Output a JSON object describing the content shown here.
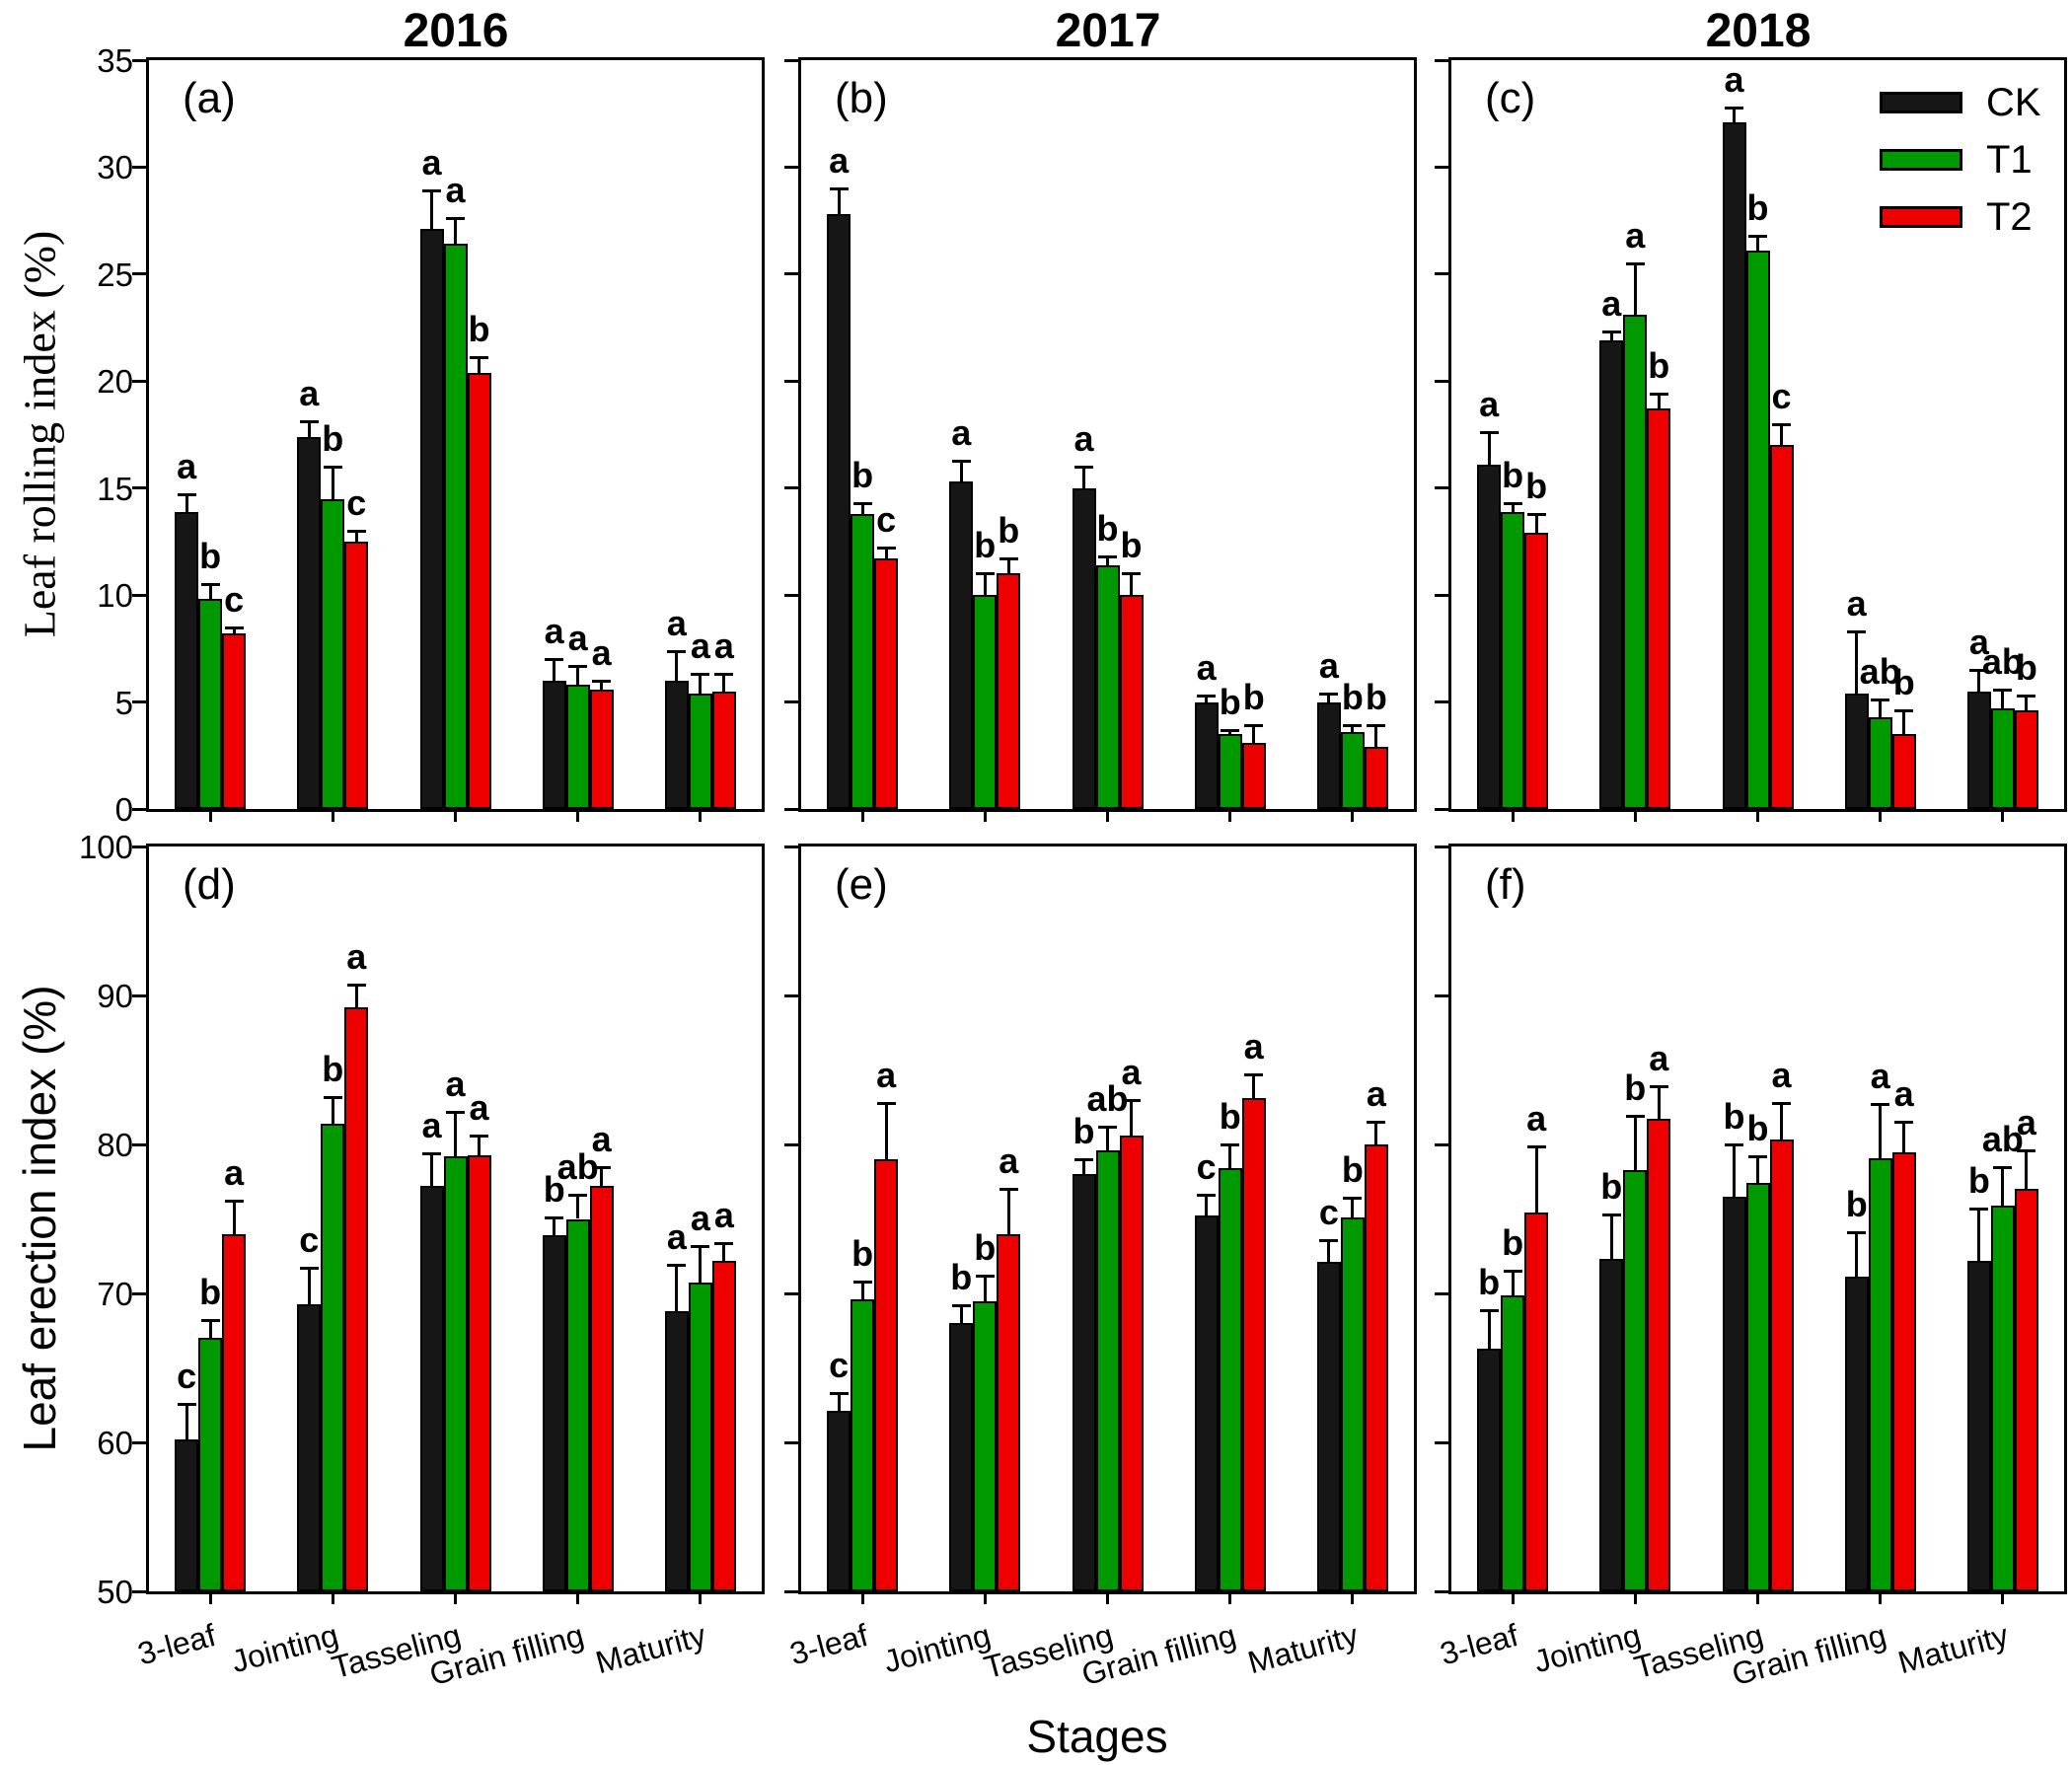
{
  "figure": {
    "xlabel": "Stages"
  },
  "legend": {
    "items": [
      {
        "label": "CK",
        "color": "#161616"
      },
      {
        "label": "T1",
        "color": "#009900"
      },
      {
        "label": "T2",
        "color": "#EE0000"
      }
    ]
  },
  "chart_data": [
    {
      "panel_label": "(a)",
      "year": "2016",
      "type": "bar",
      "ylabel": "Leaf rolling index (%)",
      "ylim": [
        0,
        35
      ],
      "yticks": [
        0,
        5,
        10,
        15,
        20,
        25,
        30,
        35
      ],
      "categories": [
        "3-leaf",
        "Jointing",
        "Tasseling",
        "Grain filling",
        "Maturity"
      ],
      "series": [
        {
          "name": "CK",
          "values": [
            13.9,
            17.4,
            27.1,
            6.0,
            6.0
          ],
          "errors": [
            0.8,
            0.7,
            1.8,
            1.0,
            1.4
          ],
          "letters": [
            "a",
            "a",
            "a",
            "a",
            "a"
          ]
        },
        {
          "name": "T1",
          "values": [
            9.8,
            14.5,
            26.4,
            5.8,
            5.4
          ],
          "errors": [
            0.7,
            1.5,
            1.2,
            0.9,
            0.9
          ],
          "letters": [
            "b",
            "b",
            "a",
            "a",
            "a"
          ]
        },
        {
          "name": "T2",
          "values": [
            8.2,
            12.5,
            20.4,
            5.6,
            5.5
          ],
          "errors": [
            0.3,
            0.5,
            0.7,
            0.4,
            0.8
          ],
          "letters": [
            "c",
            "c",
            "b",
            "a",
            "a"
          ]
        }
      ]
    },
    {
      "panel_label": "(b)",
      "year": "2017",
      "type": "bar",
      "ylabel": "Leaf rolling index (%)",
      "ylim": [
        0,
        35
      ],
      "yticks": [
        0,
        5,
        10,
        15,
        20,
        25,
        30,
        35
      ],
      "categories": [
        "3-leaf",
        "Jointing",
        "Tasseling",
        "Grain filling",
        "Maturity"
      ],
      "series": [
        {
          "name": "CK",
          "values": [
            27.8,
            15.3,
            15.0,
            5.0,
            5.0
          ],
          "errors": [
            1.2,
            1.0,
            1.0,
            0.3,
            0.4
          ],
          "letters": [
            "a",
            "a",
            "a",
            "a",
            "a"
          ]
        },
        {
          "name": "T1",
          "values": [
            13.8,
            10.0,
            11.4,
            3.5,
            3.6
          ],
          "errors": [
            0.5,
            1.0,
            0.4,
            0.2,
            0.3
          ],
          "letters": [
            "b",
            "b",
            "b",
            "b",
            "b"
          ]
        },
        {
          "name": "T2",
          "values": [
            11.7,
            11.0,
            10.0,
            3.1,
            2.9
          ],
          "errors": [
            0.5,
            0.7,
            1.0,
            0.8,
            1.0
          ],
          "letters": [
            "c",
            "b",
            "b",
            "b",
            "b"
          ]
        }
      ]
    },
    {
      "panel_label": "(c)",
      "year": "2018",
      "type": "bar",
      "ylabel": "Leaf rolling index (%)",
      "ylim": [
        0,
        35
      ],
      "yticks": [
        0,
        5,
        10,
        15,
        20,
        25,
        30,
        35
      ],
      "categories": [
        "3-leaf",
        "Jointing",
        "Tasseling",
        "Grain filling",
        "Maturity"
      ],
      "series": [
        {
          "name": "CK",
          "values": [
            16.1,
            21.9,
            32.1,
            5.4,
            5.5
          ],
          "errors": [
            1.5,
            0.4,
            0.7,
            2.9,
            1.0
          ],
          "letters": [
            "a",
            "a",
            "a",
            "a",
            "a"
          ]
        },
        {
          "name": "T1",
          "values": [
            13.9,
            23.1,
            26.1,
            4.3,
            4.7
          ],
          "errors": [
            0.4,
            2.4,
            0.7,
            0.8,
            0.9
          ],
          "letters": [
            "b",
            "a",
            "b",
            "ab",
            "ab"
          ]
        },
        {
          "name": "T2",
          "values": [
            12.9,
            18.7,
            17.0,
            3.5,
            4.6
          ],
          "errors": [
            0.9,
            0.7,
            1.0,
            1.1,
            0.7
          ],
          "letters": [
            "b",
            "b",
            "c",
            "b",
            "b"
          ]
        }
      ]
    },
    {
      "panel_label": "(d)",
      "year": "2016",
      "type": "bar",
      "ylabel": "Leaf erection index (%)",
      "ylim": [
        50,
        100
      ],
      "yticks": [
        50,
        60,
        70,
        80,
        90,
        100
      ],
      "categories": [
        "3-leaf",
        "Jointing",
        "Tasseling",
        "Grain filling",
        "Maturity"
      ],
      "series": [
        {
          "name": "CK",
          "values": [
            60.2,
            69.3,
            77.2,
            73.9,
            68.8
          ],
          "errors": [
            2.4,
            2.4,
            2.2,
            1.2,
            3.1
          ],
          "letters": [
            "c",
            "c",
            "a",
            "b",
            "a"
          ]
        },
        {
          "name": "T1",
          "values": [
            67.0,
            81.4,
            79.2,
            75.0,
            70.7
          ],
          "errors": [
            1.2,
            1.8,
            3.0,
            1.6,
            2.5
          ],
          "letters": [
            "b",
            "b",
            "a",
            "ab",
            "a"
          ]
        },
        {
          "name": "T2",
          "values": [
            74.0,
            89.2,
            79.3,
            77.2,
            72.2
          ],
          "errors": [
            2.2,
            1.5,
            1.3,
            1.3,
            1.2
          ],
          "letters": [
            "a",
            "a",
            "a",
            "a",
            "a"
          ]
        }
      ]
    },
    {
      "panel_label": "(e)",
      "year": "2017",
      "type": "bar",
      "ylabel": "Leaf erection index (%)",
      "ylim": [
        50,
        100
      ],
      "yticks": [
        50,
        60,
        70,
        80,
        90,
        100
      ],
      "categories": [
        "3-leaf",
        "Jointing",
        "Tasseling",
        "Grain filling",
        "Maturity"
      ],
      "series": [
        {
          "name": "CK",
          "values": [
            62.1,
            68.0,
            78.0,
            75.2,
            72.1
          ],
          "errors": [
            1.2,
            1.2,
            1.0,
            1.4,
            1.5
          ],
          "letters": [
            "c",
            "b",
            "b",
            "c",
            "c"
          ]
        },
        {
          "name": "T1",
          "values": [
            69.6,
            69.5,
            79.6,
            78.4,
            75.1
          ],
          "errors": [
            1.2,
            1.7,
            1.6,
            1.6,
            1.3
          ],
          "letters": [
            "b",
            "b",
            "ab",
            "b",
            "b"
          ]
        },
        {
          "name": "T2",
          "values": [
            79.0,
            74.0,
            80.6,
            83.1,
            80.0
          ],
          "errors": [
            3.8,
            3.0,
            2.4,
            1.6,
            1.5
          ],
          "letters": [
            "a",
            "a",
            "a",
            "a",
            "a"
          ]
        }
      ]
    },
    {
      "panel_label": "(f)",
      "year": "2018",
      "type": "bar",
      "ylabel": "Leaf erection index (%)",
      "ylim": [
        50,
        100
      ],
      "yticks": [
        50,
        60,
        70,
        80,
        90,
        100
      ],
      "categories": [
        "3-leaf",
        "Jointing",
        "Tasseling",
        "Grain filling",
        "Maturity"
      ],
      "series": [
        {
          "name": "CK",
          "values": [
            66.3,
            72.3,
            76.5,
            71.1,
            72.2
          ],
          "errors": [
            2.6,
            3.0,
            3.5,
            3.0,
            3.5
          ],
          "letters": [
            "b",
            "b",
            "b",
            "b",
            "b"
          ]
        },
        {
          "name": "T1",
          "values": [
            69.9,
            78.3,
            77.4,
            79.1,
            75.9
          ],
          "errors": [
            1.6,
            3.6,
            1.8,
            3.6,
            2.6
          ],
          "letters": [
            "b",
            "b",
            "b",
            "a",
            "ab"
          ]
        },
        {
          "name": "T2",
          "values": [
            75.4,
            81.7,
            80.3,
            79.5,
            77.0
          ],
          "errors": [
            4.5,
            2.2,
            2.5,
            2.0,
            2.6
          ],
          "letters": [
            "a",
            "a",
            "a",
            "a",
            "a"
          ]
        }
      ]
    }
  ]
}
